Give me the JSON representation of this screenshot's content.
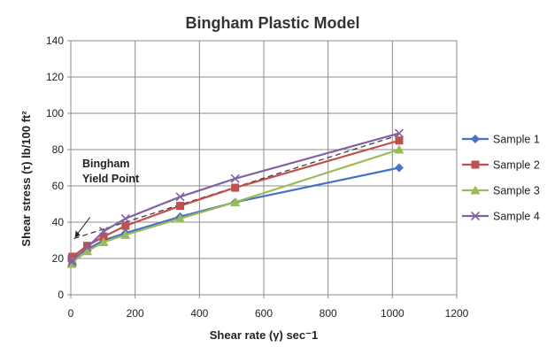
{
  "chart_data": {
    "type": "line",
    "title": "Bingham Plastic Model",
    "xlabel": "Shear rate (γ) sec⁻1",
    "ylabel": "Shear stress (τ) lb/100 ft²",
    "xlim": [
      0,
      1200
    ],
    "ylim": [
      0,
      140
    ],
    "x_ticks": [
      0,
      200,
      400,
      600,
      800,
      1000,
      1200
    ],
    "y_ticks": [
      0,
      20,
      40,
      60,
      80,
      100,
      120,
      140
    ],
    "grid": true,
    "legend_position": "right",
    "annotation": {
      "text_line1": "Bingham",
      "text_line2": "Yield Point",
      "point": [
        10,
        31
      ],
      "dashed_line": {
        "x": [
          10,
          1020
        ],
        "y": [
          31,
          88
        ]
      }
    },
    "x": [
      3,
      5,
      51,
      102,
      170,
      340,
      511,
      1021
    ],
    "series": [
      {
        "name": "Sample 1",
        "color": "#4472c4",
        "marker": "diamond",
        "values": [
          19,
          20,
          25,
          30,
          34,
          43,
          51,
          70
        ]
      },
      {
        "name": "Sample 2",
        "color": "#c0504d",
        "marker": "square",
        "values": [
          20,
          21,
          27,
          32,
          38,
          49,
          59,
          85
        ]
      },
      {
        "name": "Sample 3",
        "color": "#9bbb59",
        "marker": "triangle",
        "values": [
          17,
          18,
          24,
          29,
          33,
          42,
          51,
          80
        ]
      },
      {
        "name": "Sample 4",
        "color": "#8064a2",
        "marker": "x",
        "values": [
          18,
          19,
          26,
          35,
          42,
          54,
          64,
          89
        ]
      }
    ]
  }
}
